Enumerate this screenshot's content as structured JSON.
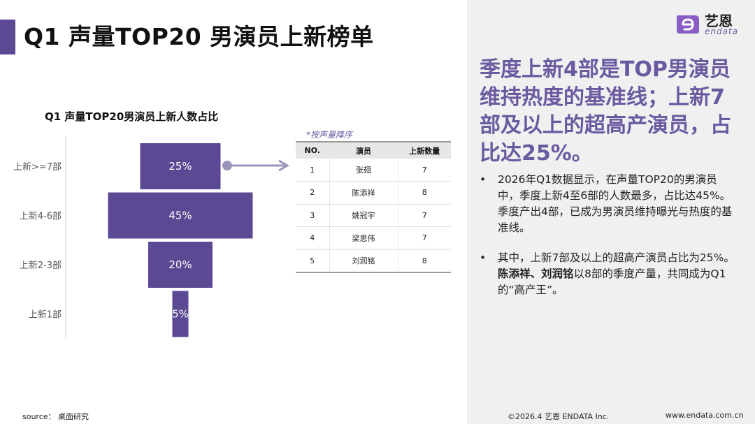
{
  "header": {
    "title": "Q1 声量TOP20 男演员上新榜单"
  },
  "chart_data": {
    "type": "bar",
    "title": "Q1 声量TOP20男演员上新人数占比",
    "orientation": "horizontal-centered-funnel",
    "categories": [
      "上新>=7部",
      "上新4-6部",
      "上新2-3部",
      "上新1部"
    ],
    "values": [
      25,
      45,
      20,
      5
    ],
    "data_labels": [
      "25%",
      "45%",
      "20%",
      "5%"
    ],
    "unit": "%",
    "color": "#5b4a93",
    "label_color": "#ffffff",
    "xlabel": "",
    "ylabel": ""
  },
  "table": {
    "note": "*按声量降序",
    "headers": [
      "NO.",
      "演员",
      "上新数量"
    ],
    "rows": [
      [
        "1",
        "张翅",
        "7"
      ],
      [
        "2",
        "陈添祥",
        "8"
      ],
      [
        "3",
        "姚冠宇",
        "7"
      ],
      [
        "4",
        "梁思伟",
        "7"
      ],
      [
        "5",
        "刘润铭",
        "8"
      ]
    ]
  },
  "logo": {
    "cn": "艺恩",
    "en": "endata",
    "icon": "endata-logo-icon",
    "color": "#8a5cc4"
  },
  "panel": {
    "headline": "季度上新4部是TOP男演员维持热度的基准线；上新7部及以上的超高产演员，占比达25%。",
    "bullet_marker": "•",
    "bullet1": "2026年Q1数据显示，在声量TOP20的男演员中，季度上新4至6部的人数最多，占比达45%。季度产出4部，已成为男演员维持曝光与热度的基准线。",
    "bullet2_pre": "其中，上新7部及以上的超高产演员占比为25%。",
    "bullet2_bold": "陈添祥、刘润铭",
    "bullet2_post": "以8部的季度产量，共同成为Q1的“高产王”。"
  },
  "footer": {
    "source": "source： 桌面研究",
    "copyright": "©2026.4 艺恩 ENDATA Inc.",
    "website": "www.endata.com.cn"
  },
  "colors": {
    "accent": "#5b4a93",
    "headline": "#6a5aa0",
    "panel_bg": "#f0f0f0"
  }
}
